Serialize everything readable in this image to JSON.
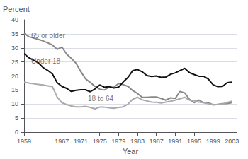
{
  "chart_data": {
    "type": "line",
    "xlabel": "Year",
    "ylabel": "Percent",
    "x": [
      1959,
      1960,
      1961,
      1962,
      1963,
      1964,
      1965,
      1966,
      1967,
      1968,
      1969,
      1970,
      1971,
      1972,
      1973,
      1974,
      1975,
      1976,
      1977,
      1978,
      1979,
      1980,
      1981,
      1982,
      1983,
      1984,
      1985,
      1986,
      1987,
      1988,
      1989,
      1990,
      1991,
      1992,
      1993,
      1994,
      1995,
      1996,
      1997,
      1998,
      1999,
      2000,
      2001,
      2002,
      2003
    ],
    "series": [
      {
        "name": "65 or older",
        "color": "#888888",
        "values": [
          35.2,
          34.0,
          33.5,
          33.0,
          32.5,
          31.8,
          31.0,
          29.5,
          30.3,
          27.8,
          26.3,
          24.5,
          21.6,
          19.0,
          17.7,
          16.3,
          15.3,
          15.0,
          16.1,
          16.0,
          17.3,
          16.9,
          16.3,
          14.8,
          13.8,
          12.4,
          12.4,
          12.5,
          12.5,
          12.0,
          11.4,
          12.2,
          12.0,
          14.5,
          14.0,
          11.7,
          10.5,
          11.4,
          10.5,
          10.5,
          9.7,
          9.9,
          10.1,
          10.2,
          10.5
        ]
      },
      {
        "name": "Under 18",
        "color": "#111111",
        "values": [
          28.0,
          26.5,
          25.6,
          24.7,
          23.0,
          22.0,
          20.7,
          17.6,
          16.3,
          15.6,
          14.5,
          14.9,
          15.1,
          15.1,
          14.4,
          15.4,
          16.8,
          16.0,
          16.2,
          15.7,
          16.0,
          17.9,
          19.5,
          21.9,
          22.3,
          21.5,
          20.1,
          19.8,
          20.0,
          19.5,
          19.6,
          20.6,
          21.1,
          21.9,
          22.7,
          21.2,
          20.5,
          19.9,
          19.9,
          18.9,
          16.9,
          16.2,
          16.3,
          17.6,
          17.8
        ]
      },
      {
        "name": "18 to 64",
        "color": "#aaaaaa",
        "values": [
          17.8,
          17.5,
          17.2,
          17.0,
          16.8,
          16.5,
          16.2,
          12.5,
          10.5,
          9.8,
          9.3,
          9.0,
          9.0,
          9.2,
          8.8,
          8.3,
          8.9,
          8.9,
          8.7,
          8.5,
          8.8,
          9.0,
          10.0,
          11.7,
          12.4,
          11.5,
          11.1,
          10.7,
          10.6,
          10.4,
          10.7,
          11.0,
          11.4,
          11.9,
          12.4,
          11.4,
          11.2,
          10.7,
          10.5,
          10.1,
          9.8,
          9.8,
          10.0,
          10.6,
          11.0
        ]
      }
    ],
    "annotations": [
      {
        "text": "65 or older",
        "x": 1960.5,
        "y": 33.0
      },
      {
        "text": "Under 18",
        "x": 1960.5,
        "y": 24.0
      },
      {
        "text": "18 to 64",
        "x": 1972.5,
        "y": 10.8
      }
    ],
    "xlim": [
      1959,
      2004
    ],
    "xticks": [
      1959,
      1967,
      1971,
      1975,
      1979,
      1983,
      1987,
      1991,
      1995,
      1999,
      2003
    ],
    "ylim": [
      0,
      40
    ],
    "yticks": [
      0,
      5,
      10,
      15,
      20,
      25,
      30,
      35,
      40
    ],
    "grid": true
  }
}
